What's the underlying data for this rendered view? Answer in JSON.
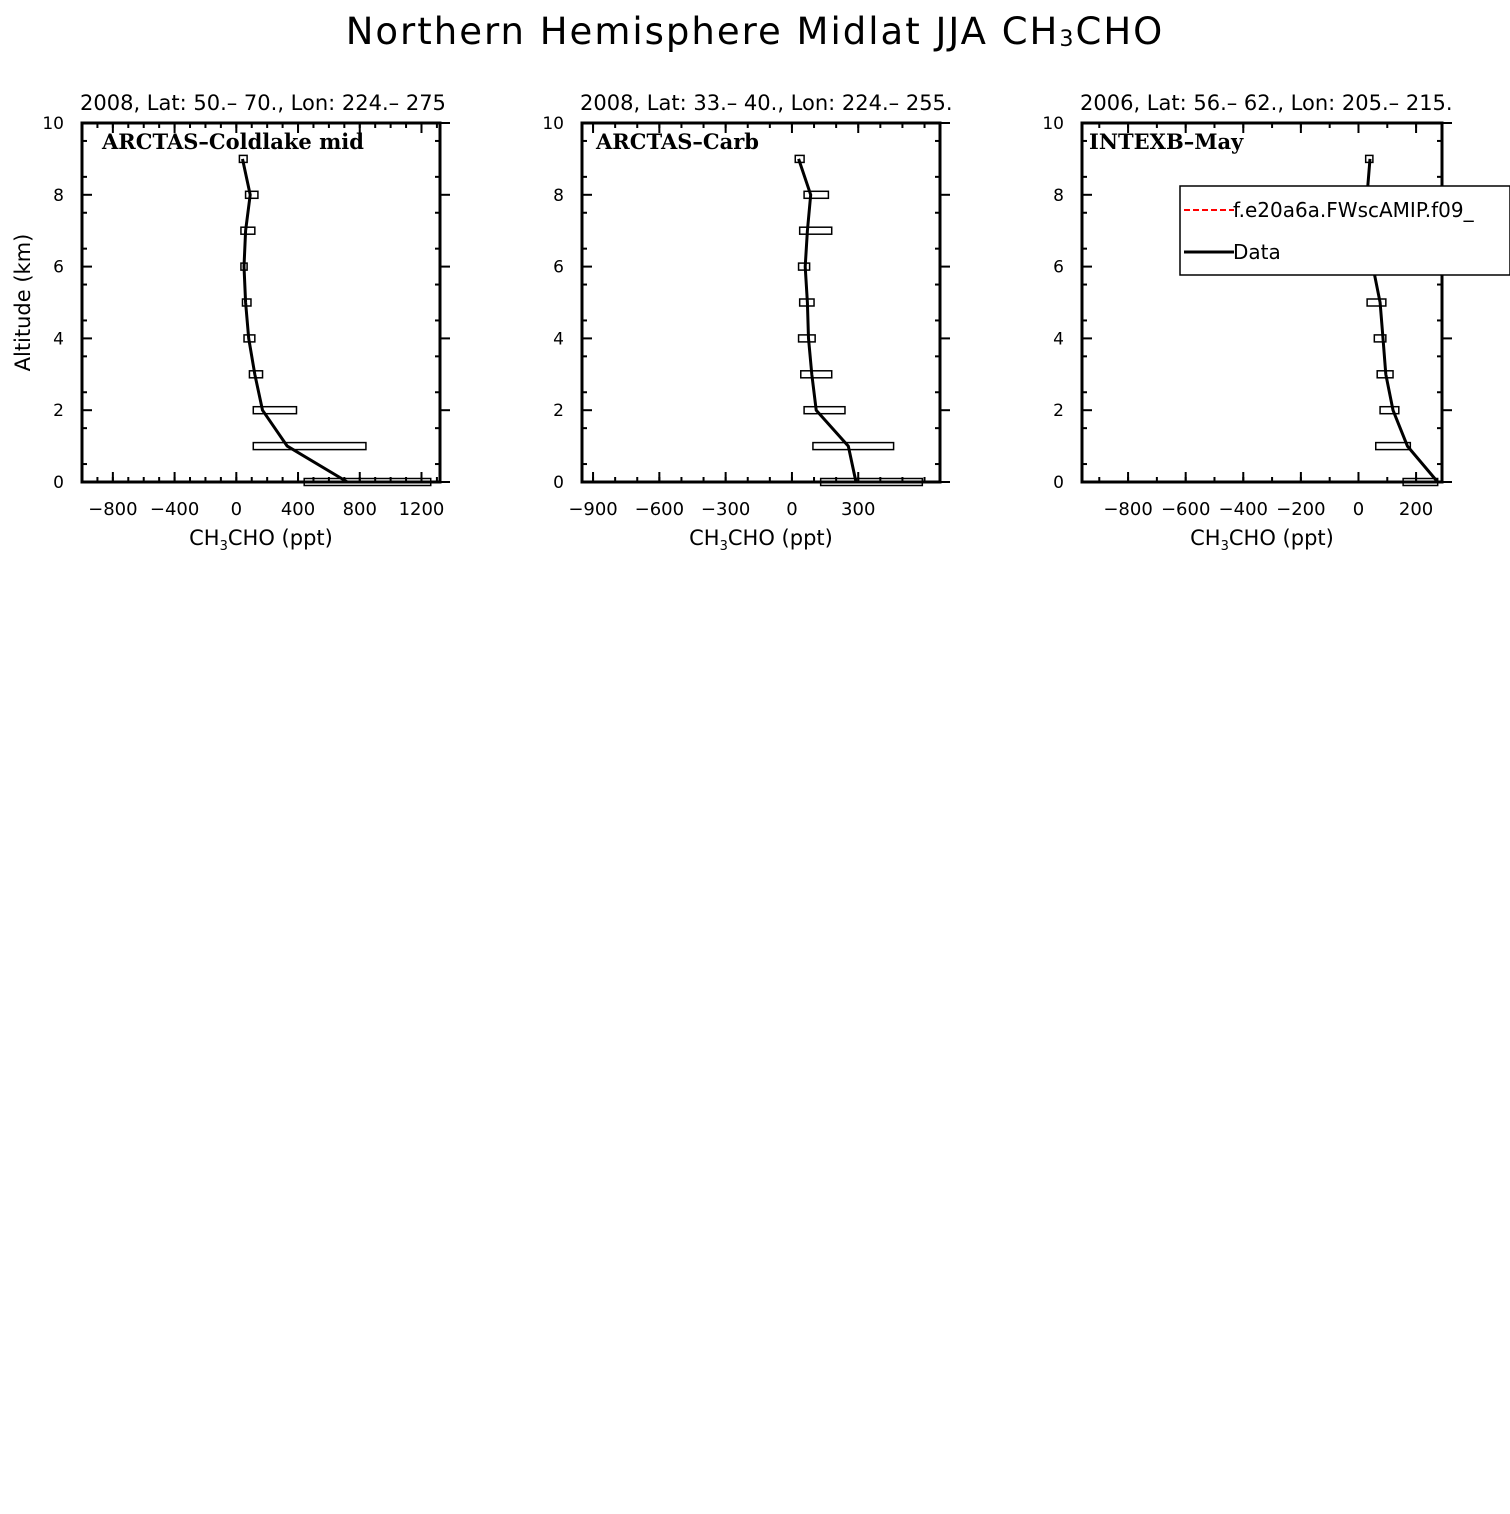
{
  "figure": {
    "title_main": "Northern Hemisphere Midlat JJA CH",
    "title_sub": "3",
    "title_tail": "CHO"
  },
  "chart_data": [
    {
      "type": "line",
      "region_title": "2008, Lat:  50.–  70., Lon: 224.–  275",
      "panel_label": "ARCTAS–Coldlake mid",
      "xlabel": {
        "pre": "CH",
        "sub": "3",
        "post": "CHO (ppt)"
      },
      "ylabel": "Altitude (km)",
      "xlim": [
        -1000,
        1320
      ],
      "ylim": [
        0,
        10
      ],
      "xticks": [
        -800,
        -400,
        0,
        400,
        800,
        1200
      ],
      "xtick_labels": [
        "−800",
        "−400",
        "0",
        "400",
        "800",
        "1200"
      ],
      "xminor": 100,
      "yticks": [
        0,
        2,
        4,
        6,
        8,
        10
      ],
      "series": [
        {
          "name": "Data",
          "color": "#000000",
          "points": [
            {
              "alt": 0,
              "x": 720,
              "lo": 440,
              "hi": 1260
            },
            {
              "alt": 1,
              "x": 330,
              "lo": 110,
              "hi": 840
            },
            {
              "alt": 2,
              "x": 170,
              "lo": 110,
              "hi": 390
            },
            {
              "alt": 3,
              "x": 120,
              "lo": 85,
              "hi": 170
            },
            {
              "alt": 4,
              "x": 80,
              "lo": 50,
              "hi": 120
            },
            {
              "alt": 5,
              "x": 60,
              "lo": 40,
              "hi": 95
            },
            {
              "alt": 6,
              "x": 50,
              "lo": 30,
              "hi": 70
            },
            {
              "alt": 7,
              "x": 60,
              "lo": 30,
              "hi": 120
            },
            {
              "alt": 8,
              "x": 90,
              "lo": 60,
              "hi": 140
            },
            {
              "alt": 9,
              "x": 40,
              "lo": 20,
              "hi": 70
            }
          ]
        }
      ]
    },
    {
      "type": "line",
      "region_title": "2008, Lat:  33.–  40., Lon: 224.–  255.",
      "panel_label": "ARCTAS–Carb",
      "xlabel": {
        "pre": "CH",
        "sub": "3",
        "post": "CHO (ppt)"
      },
      "ylabel": "",
      "xlim": [
        -950,
        670
      ],
      "ylim": [
        0,
        10
      ],
      "xticks": [
        -900,
        -600,
        -300,
        0,
        300
      ],
      "xtick_labels": [
        "−900",
        "−600",
        "−300",
        "0",
        "300"
      ],
      "xminor": 100,
      "yticks": [
        0,
        2,
        4,
        6,
        8,
        10
      ],
      "series": [
        {
          "name": "Data",
          "color": "#000000",
          "points": [
            {
              "alt": 0,
              "x": 290,
              "lo": 130,
              "hi": 590
            },
            {
              "alt": 1,
              "x": 255,
              "lo": 95,
              "hi": 460
            },
            {
              "alt": 2,
              "x": 110,
              "lo": 55,
              "hi": 240
            },
            {
              "alt": 3,
              "x": 90,
              "lo": 40,
              "hi": 180
            },
            {
              "alt": 4,
              "x": 75,
              "lo": 30,
              "hi": 105
            },
            {
              "alt": 5,
              "x": 70,
              "lo": 35,
              "hi": 100
            },
            {
              "alt": 6,
              "x": 60,
              "lo": 30,
              "hi": 80
            },
            {
              "alt": 7,
              "x": 70,
              "lo": 35,
              "hi": 180
            },
            {
              "alt": 8,
              "x": 85,
              "lo": 55,
              "hi": 165
            },
            {
              "alt": 9,
              "x": 30,
              "lo": 15,
              "hi": 55
            }
          ]
        }
      ]
    },
    {
      "type": "line",
      "region_title": "2006, Lat: 56.–  62., Lon: 205.–  215.",
      "panel_label": "INTEXB–May",
      "xlabel": {
        "pre": "CH",
        "sub": "3",
        "post": "CHO (ppt)"
      },
      "ylabel": "",
      "xlim": [
        -960,
        290
      ],
      "ylim": [
        0,
        10
      ],
      "xticks": [
        -800,
        -600,
        -400,
        -200,
        0,
        200
      ],
      "xtick_labels": [
        "−800",
        "−600",
        "−400",
        "−200",
        "0",
        "200"
      ],
      "xminor": 100,
      "yticks": [
        0,
        2,
        4,
        6,
        8,
        10
      ],
      "legend": {
        "placement": "upper-right",
        "entries": [
          {
            "label": "f.e20a6a.FWscAMIP.f09_",
            "color": "#ff0000",
            "style": "dashed"
          },
          {
            "label": "Data",
            "color": "#000000",
            "style": "solid"
          }
        ]
      },
      "series": [
        {
          "name": "Data",
          "color": "#000000",
          "points": [
            {
              "alt": 0,
              "x": 275,
              "lo": 155,
              "hi": 275
            },
            {
              "alt": 1,
              "x": 170,
              "lo": 60,
              "hi": 180
            },
            {
              "alt": 2,
              "x": 120,
              "lo": 75,
              "hi": 140
            },
            {
              "alt": 3,
              "x": 95,
              "lo": 65,
              "hi": 120
            },
            {
              "alt": 4,
              "x": 85,
              "lo": 55,
              "hi": 95
            },
            {
              "alt": 5,
              "x": 75,
              "lo": 30,
              "hi": 95
            },
            {
              "alt": 6,
              "x": 50,
              "lo": 30,
              "hi": 75
            },
            {
              "alt": 7,
              "x": 20,
              "lo": 15,
              "hi": 45
            },
            {
              "alt": 8,
              "x": 30,
              "lo": 15,
              "hi": 35
            },
            {
              "alt": 9,
              "x": 40,
              "lo": 25,
              "hi": 50
            }
          ]
        }
      ]
    }
  ]
}
